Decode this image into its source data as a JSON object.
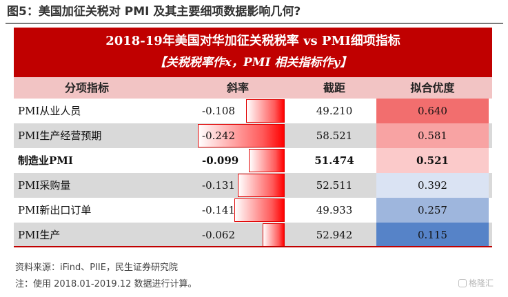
{
  "figure": {
    "title": "图5：美国加征关税对 PMI 及其主要细项数据影响几何?"
  },
  "banner": {
    "line1": "2018-19年美国对华加征关税税率 vs PMI细项指标",
    "line2": "【关税税率作x，PMI 相关指标作y】"
  },
  "table": {
    "headers": [
      "分项指标",
      "斜率",
      "截距",
      "拟合优度"
    ],
    "rows": [
      {
        "name": "PMI从业人员",
        "slope": "-0.108",
        "intercept": "49.210",
        "r2": "0.640",
        "bold": false,
        "shaded": false
      },
      {
        "name": "PMI生产经营预期",
        "slope": "-0.242",
        "intercept": "58.521",
        "r2": "0.581",
        "bold": false,
        "shaded": true
      },
      {
        "name": "制造业PMI",
        "slope": "-0.099",
        "intercept": "51.474",
        "r2": "0.521",
        "bold": true,
        "shaded": false
      },
      {
        "name": "PMI采购量",
        "slope": "-0.131",
        "intercept": "52.511",
        "r2": "0.392",
        "bold": false,
        "shaded": true
      },
      {
        "name": "PMI新出口订单",
        "slope": "-0.141",
        "intercept": "49.933",
        "r2": "0.257",
        "bold": false,
        "shaded": false
      },
      {
        "name": "PMI生产",
        "slope": "-0.062",
        "intercept": "52.942",
        "r2": "0.115",
        "bold": false,
        "shaded": true
      }
    ],
    "slope_bar_max_abs": 0.242
  },
  "colors": {
    "banner_bg": "#c00000",
    "header_bg": "#f2c4c4",
    "fit_heat": [
      "#f26e6e",
      "#f8a3a3",
      "#fbcaca",
      "#dae3f3",
      "#9eb6dd",
      "#5683c8"
    ]
  },
  "footer": {
    "source": "资料来源：iFind、PIIE，民生证券研究院",
    "note": "注：使用 2018.01-2019.12 数据进行计算。"
  },
  "watermark": {
    "text": "格隆汇"
  }
}
